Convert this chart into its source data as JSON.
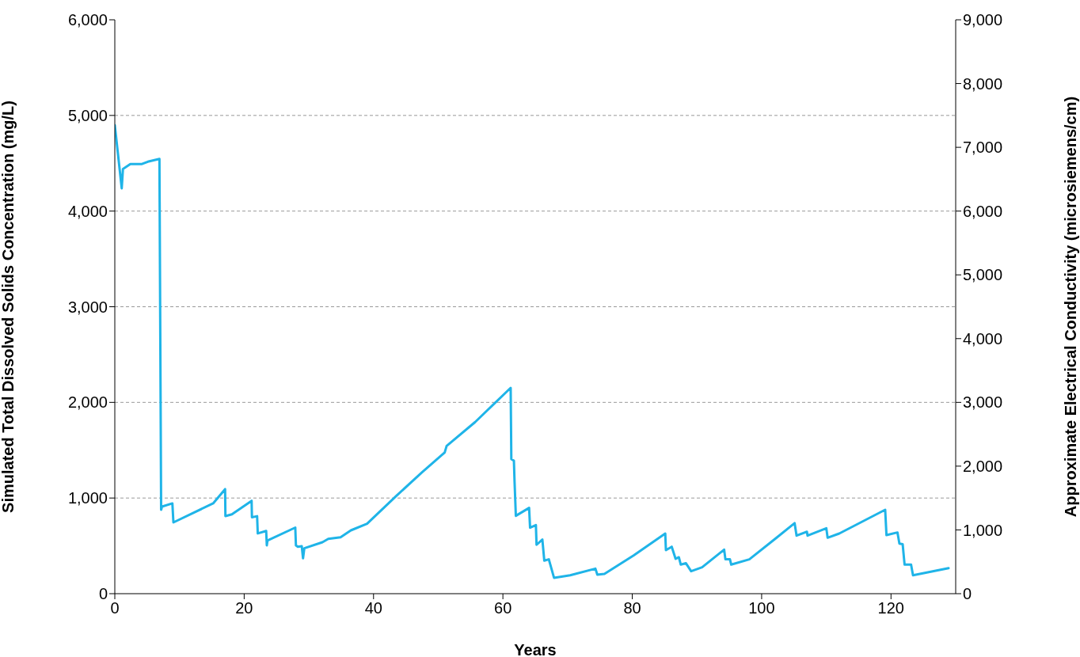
{
  "chart_data": {
    "type": "line",
    "xlabel": "Years",
    "ylabel": "Simulated Total Dissolved Solids Concentration (mg/L)",
    "y2label": "Approximate Electrical Conductivity (microsiemens/cm)",
    "x": [
      0,
      1.07,
      1.26,
      2.4,
      4.2,
      5.1,
      6.9,
      7.16,
      7.3,
      8.9,
      9.06,
      15.2,
      17.05,
      17.1,
      18.1,
      21.15,
      21.2,
      22.0,
      22.1,
      23.4,
      23.5,
      23.6,
      27.9,
      28.0,
      28.3,
      28.9,
      29.1,
      29.3,
      32.1,
      33.0,
      34.9,
      36.5,
      39.0,
      43.5,
      47.5,
      51.0,
      51.3,
      55.7,
      61.2,
      61.3,
      61.7,
      61.8,
      62.0,
      64.05,
      64.2,
      65.1,
      65.2,
      66.1,
      66.4,
      67.1,
      67.9,
      70.4,
      74.3,
      74.6,
      75.7,
      80.2,
      85.1,
      85.2,
      86.1,
      86.7,
      87.2,
      87.5,
      88.3,
      89.1,
      90.8,
      94.2,
      94.4,
      95.1,
      95.3,
      98.1,
      102.2,
      105.1,
      105.4,
      107.0,
      107.1,
      110.0,
      110.2,
      112.0,
      119.1,
      119.3,
      121.0,
      121.3,
      121.8,
      122.1,
      123.1,
      123.4,
      128.9
    ],
    "series": [
      {
        "color": "#1fb4e8",
        "values": [
          4897,
          4238,
          4441,
          4492,
          4492,
          4516,
          4545,
          877,
          910,
          944,
          745,
          944,
          1093,
          811,
          830,
          971,
          799,
          810,
          630,
          656,
          505,
          555,
          691,
          505,
          490,
          497,
          370,
          475,
          538,
          573,
          590,
          662,
          731,
          1021,
          1269,
          1476,
          1545,
          1794,
          2152,
          1407,
          1390,
          1173,
          814,
          897,
          690,
          717,
          511,
          566,
          345,
          359,
          166,
          193,
          262,
          199,
          207,
          400,
          629,
          455,
          491,
          364,
          381,
          304,
          318,
          235,
          276,
          461,
          359,
          359,
          304,
          359,
          579,
          737,
          607,
          648,
          607,
          684,
          585,
          629,
          877,
          612,
          640,
          524,
          518,
          304,
          304,
          193,
          267
        ]
      }
    ],
    "xlim": [
      0,
      130
    ],
    "xticks": [
      0,
      20,
      40,
      60,
      80,
      100,
      120
    ],
    "ylim": [
      0,
      6000
    ],
    "yticks": [
      0,
      {
        "value": 1000,
        "label": "1,000"
      },
      {
        "value": 2000,
        "label": "2,000"
      },
      {
        "value": 3000,
        "label": "3,000"
      },
      {
        "value": 4000,
        "label": "4,000"
      },
      {
        "value": 5000,
        "label": "5,000"
      },
      {
        "value": 6000,
        "label": "6,000"
      }
    ],
    "y2lim": [
      0,
      9000
    ],
    "y2ticks": [
      0,
      {
        "value": 1000,
        "label": "1,000"
      },
      {
        "value": 2000,
        "label": "2,000"
      },
      {
        "value": 3000,
        "label": "3,000"
      },
      {
        "value": 4000,
        "label": "4,000"
      },
      {
        "value": 5000,
        "label": "5,000"
      },
      {
        "value": 6000,
        "label": "6,000"
      },
      {
        "value": 7000,
        "label": "7,000"
      },
      {
        "value": 8000,
        "label": "8,000"
      },
      {
        "value": 9000,
        "label": "9,000"
      }
    ],
    "grid": "y",
    "legend": false,
    "marker": "none",
    "line_style": "solid"
  }
}
